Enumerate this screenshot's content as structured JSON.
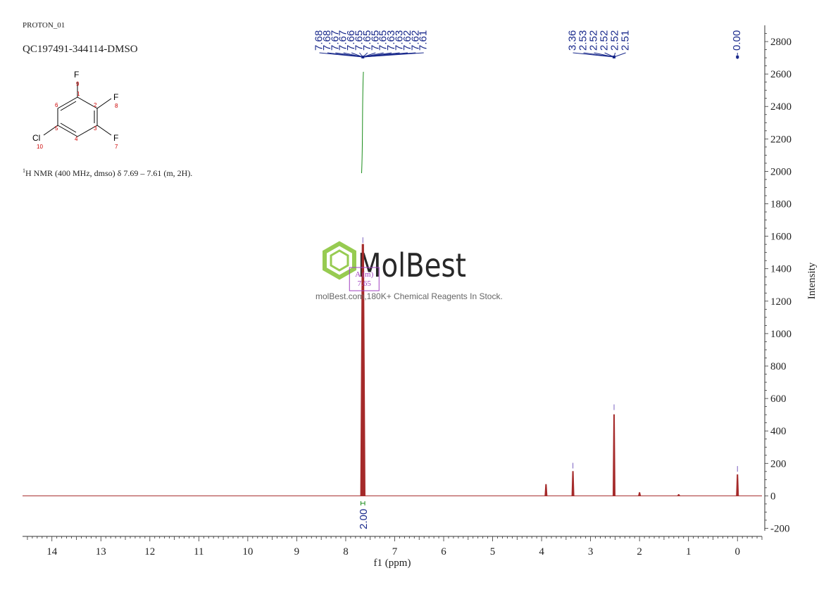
{
  "header": {
    "experiment": "PROTON_01",
    "sample": "QC197491-344114-DMSO",
    "nmr_line_sup": "1",
    "nmr_line_text": "H NMR (400 MHz, dmso) δ 7.69 – 7.61 (m, 2H)."
  },
  "molecule": {
    "atoms": [
      {
        "symbol": "F",
        "number": "9"
      },
      {
        "symbol": "F",
        "number": "8"
      },
      {
        "symbol": "F",
        "number": "7"
      },
      {
        "symbol": "Cl",
        "number": "10"
      }
    ],
    "ring_numbers": [
      "1",
      "2",
      "3",
      "4",
      "5",
      "6"
    ]
  },
  "watermark": {
    "brand": "MolBest",
    "tagline": "molBest.com,180K+ Chemical Reagents In Stock."
  },
  "chart_data": {
    "type": "line",
    "xlabel": "f1 (ppm)",
    "ylabel": "Intensity",
    "xlim": [
      14.6,
      -0.5
    ],
    "ylim": [
      -250,
      2900
    ],
    "x_ticks": [
      14,
      13,
      12,
      11,
      10,
      9,
      8,
      7,
      6,
      5,
      4,
      3,
      2,
      1,
      0
    ],
    "y_ticks": [
      -200,
      0,
      200,
      400,
      600,
      800,
      1000,
      1200,
      1400,
      1600,
      1800,
      2000,
      2200,
      2400,
      2600,
      2800
    ],
    "colors": {
      "spectrum": "#a52a2a",
      "labels": "#1a2a8c",
      "integral": "#1a8c1a",
      "multiplet": "#a040c0",
      "axis": "#333333"
    },
    "peaks": [
      {
        "ppm": 7.65,
        "intensity": 1550
      },
      {
        "ppm": 3.91,
        "intensity": 70
      },
      {
        "ppm": 3.36,
        "intensity": 150
      },
      {
        "ppm": 2.52,
        "intensity": 500
      },
      {
        "ppm": 2.0,
        "intensity": 20
      },
      {
        "ppm": 1.2,
        "intensity": 8
      },
      {
        "ppm": 0.0,
        "intensity": 130
      }
    ],
    "peak_label_groups": [
      {
        "labels": [
          "7.68",
          "7.68",
          "7.67",
          "7.67",
          "7.66",
          "7.65",
          "7.65",
          "7.65",
          "7.65",
          "7.63",
          "7.63",
          "7.62",
          "7.62",
          "7.61"
        ],
        "center_ppm": 7.65
      },
      {
        "labels": [
          "3.36",
          "2.53",
          "2.52",
          "2.52",
          "2.52",
          "2.51"
        ],
        "center_ppm": 2.52
      },
      {
        "labels": [
          "0.00"
        ],
        "center_ppm": 0.0
      }
    ],
    "integrals": [
      {
        "from_ppm": 7.69,
        "to_ppm": 7.61,
        "value": "2.00"
      }
    ],
    "multiplets": [
      {
        "label": "A (m)",
        "shift": "7.65"
      }
    ]
  }
}
